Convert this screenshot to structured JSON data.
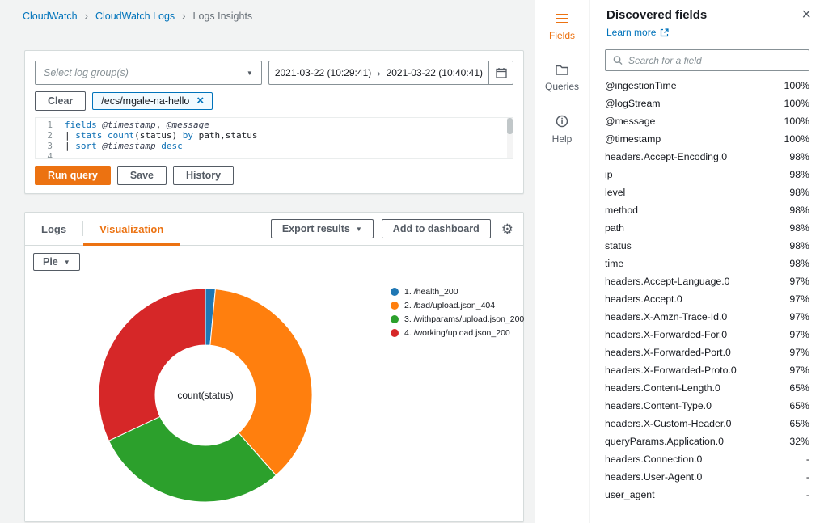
{
  "accent_colors": {
    "orange": "#ec7211",
    "link_blue": "#0073bb"
  },
  "breadcrumb": {
    "items": [
      {
        "label": "CloudWatch"
      },
      {
        "label": "CloudWatch Logs"
      },
      {
        "label": "Logs Insights"
      }
    ]
  },
  "query_panel": {
    "log_group_placeholder": "Select log group(s)",
    "date_start": "2021-03-22 (10:29:41)",
    "date_end": "2021-03-22 (10:40:41)",
    "clear_label": "Clear",
    "log_group_tag": "/ecs/mgale-na-hello",
    "editor_lines": [
      {
        "num": "1",
        "code": "fields @timestamp, @message"
      },
      {
        "num": "2",
        "code": "| stats count(status) by path,status"
      },
      {
        "num": "3",
        "code": "| sort @timestamp desc"
      },
      {
        "num": "4",
        "code": ""
      }
    ],
    "run_query_label": "Run query",
    "save_label": "Save",
    "history_label": "History"
  },
  "results_panel": {
    "tabs": [
      {
        "label": "Logs",
        "active": false
      },
      {
        "label": "Visualization",
        "active": true
      }
    ],
    "export_results_label": "Export results",
    "add_to_dashboard_label": "Add to dashboard",
    "chart_type_selector": "Pie"
  },
  "chart_data": {
    "type": "pie",
    "center_label": "count(status)",
    "legend_position": "right",
    "slices": [
      {
        "label": "1. /health_200",
        "color": "#1f77b4",
        "value": 1.5
      },
      {
        "label": "2. /bad/upload.json_404",
        "color": "#ff7f0e",
        "value": 37
      },
      {
        "label": "3. /withparams/upload.json_200",
        "color": "#2ca02c",
        "value": 29.5
      },
      {
        "label": "4. /working/upload.json_200",
        "color": "#d62728",
        "value": 32
      }
    ]
  },
  "side_toolbar": {
    "items": [
      {
        "label": "Fields",
        "active": true
      },
      {
        "label": "Queries",
        "active": false
      },
      {
        "label": "Help",
        "active": false
      }
    ]
  },
  "fields_panel": {
    "title": "Discovered fields",
    "learn_more_label": "Learn more",
    "search_placeholder": "Search for a field",
    "fields": [
      {
        "name": "@ingestionTime",
        "pct": "100%"
      },
      {
        "name": "@logStream",
        "pct": "100%"
      },
      {
        "name": "@message",
        "pct": "100%"
      },
      {
        "name": "@timestamp",
        "pct": "100%"
      },
      {
        "name": "headers.Accept-Encoding.0",
        "pct": "98%"
      },
      {
        "name": "ip",
        "pct": "98%"
      },
      {
        "name": "level",
        "pct": "98%"
      },
      {
        "name": "method",
        "pct": "98%"
      },
      {
        "name": "path",
        "pct": "98%"
      },
      {
        "name": "status",
        "pct": "98%"
      },
      {
        "name": "time",
        "pct": "98%"
      },
      {
        "name": "headers.Accept-Language.0",
        "pct": "97%"
      },
      {
        "name": "headers.Accept.0",
        "pct": "97%"
      },
      {
        "name": "headers.X-Amzn-Trace-Id.0",
        "pct": "97%"
      },
      {
        "name": "headers.X-Forwarded-For.0",
        "pct": "97%"
      },
      {
        "name": "headers.X-Forwarded-Port.0",
        "pct": "97%"
      },
      {
        "name": "headers.X-Forwarded-Proto.0",
        "pct": "97%"
      },
      {
        "name": "headers.Content-Length.0",
        "pct": "65%"
      },
      {
        "name": "headers.Content-Type.0",
        "pct": "65%"
      },
      {
        "name": "headers.X-Custom-Header.0",
        "pct": "65%"
      },
      {
        "name": "queryParams.Application.0",
        "pct": "32%"
      },
      {
        "name": "headers.Connection.0",
        "pct": "-"
      },
      {
        "name": "headers.User-Agent.0",
        "pct": "-"
      },
      {
        "name": "user_agent",
        "pct": "-"
      }
    ]
  }
}
